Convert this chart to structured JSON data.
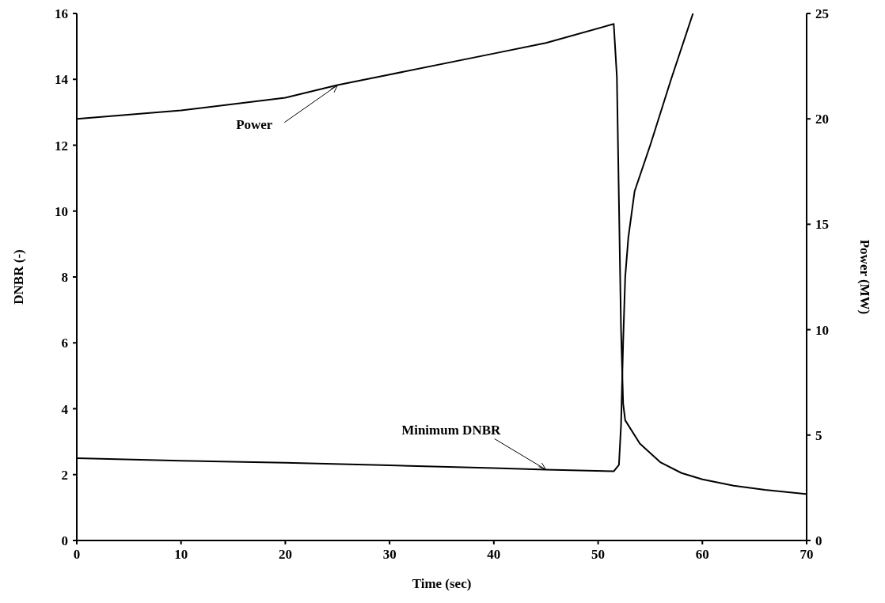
{
  "chart_data": {
    "type": "line",
    "xlabel": "Time (sec)",
    "ylabel": "DNBR (-)",
    "y2label": "Power (MW)",
    "xlim": [
      0,
      70
    ],
    "xticks": [
      0,
      10,
      20,
      30,
      40,
      50,
      60,
      70
    ],
    "ylim": [
      0,
      16
    ],
    "yticks": [
      0,
      2,
      4,
      6,
      8,
      10,
      12,
      14,
      16
    ],
    "y2lim": [
      0,
      25
    ],
    "y2ticks": [
      0,
      5,
      10,
      15,
      20,
      25
    ],
    "grid": false,
    "legend": false,
    "marker": "none",
    "line_style": "solid",
    "series": [
      {
        "color": "#000000",
        "x": [
          0,
          10,
          20,
          30,
          40,
          45,
          51.5,
          52,
          52.2,
          52.4,
          52.6,
          52.9,
          53.5,
          55,
          57,
          59.1
        ],
        "values": [
          2.5,
          2.42,
          2.36,
          2.28,
          2.2,
          2.15,
          2.1,
          2.3,
          3.5,
          6,
          8,
          9.2,
          10.6,
          12,
          14,
          16
        ]
      },
      {
        "color": "#000000",
        "axis": "y2",
        "x": [
          0,
          10,
          20,
          25,
          30,
          40,
          45,
          51.5,
          51.8,
          52,
          52.2,
          52.4,
          52.6,
          54,
          56,
          58,
          60,
          63,
          66,
          70
        ],
        "values": [
          20,
          20.4,
          21,
          21.6,
          22.1,
          23.1,
          23.6,
          24.5,
          22,
          16,
          10,
          6.5,
          5.7,
          4.6,
          3.7,
          3.2,
          2.9,
          2.6,
          2.4,
          2.2
        ]
      }
    ],
    "annotations": [
      {
        "text": "Power",
        "x": 25,
        "y": 13.82
      },
      {
        "text": "Minimum DNBR",
        "x": 45,
        "y": 2.15
      }
    ]
  }
}
